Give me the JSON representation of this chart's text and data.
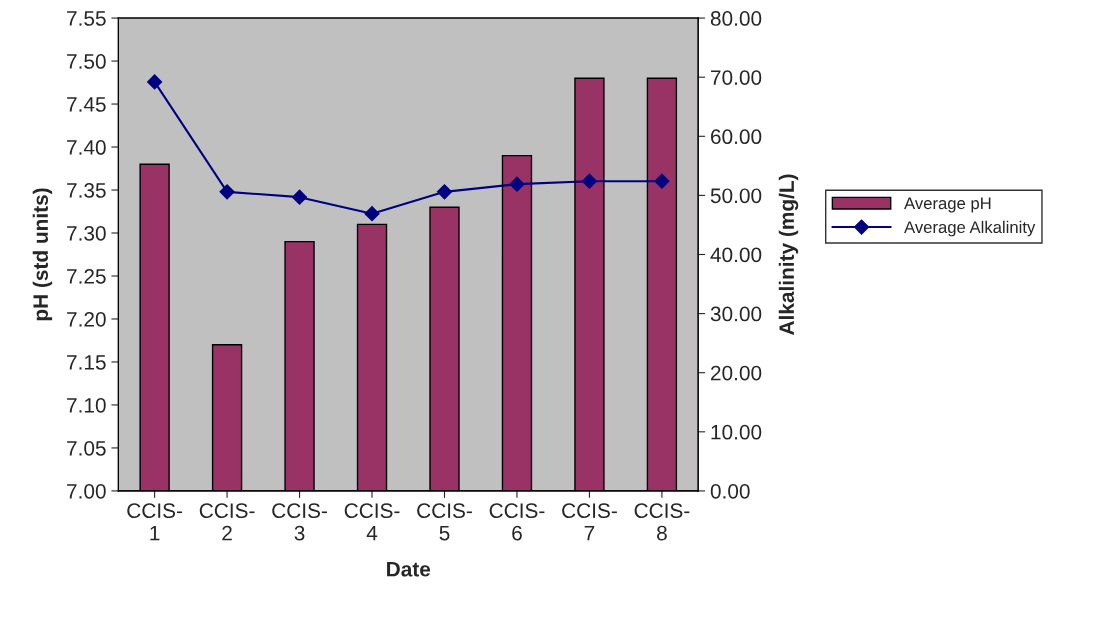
{
  "chart_data": {
    "type": "bar",
    "xlabel": "Date",
    "ylabel": "pH (std units)",
    "y2label": "Alkalinity (mg/L)",
    "categories": [
      "CCIS-1",
      "CCIS-2",
      "CCIS-3",
      "CCIS-4",
      "CCIS-5",
      "CCIS-6",
      "CCIS-7",
      "CCIS-8"
    ],
    "series": [
      {
        "name": "Average pH",
        "color": "#993366",
        "values": [
          7.38,
          7.17,
          7.29,
          7.31,
          7.33,
          7.39,
          7.48,
          7.48
        ]
      },
      {
        "name": "Average Alkalinity",
        "type": "line",
        "axis": "y2",
        "color": "#000080",
        "marker": "diamond",
        "values": [
          69.2,
          50.6,
          49.7,
          46.9,
          50.6,
          51.9,
          52.4,
          52.4
        ]
      }
    ],
    "ylim": [
      7.0,
      7.55
    ],
    "yticks": [
      {
        "value": 7.0,
        "label": "7.00"
      },
      {
        "value": 7.05,
        "label": "7.05"
      },
      {
        "value": 7.1,
        "label": "7.10"
      },
      {
        "value": 7.15,
        "label": "7.15"
      },
      {
        "value": 7.2,
        "label": "7.20"
      },
      {
        "value": 7.25,
        "label": "7.25"
      },
      {
        "value": 7.3,
        "label": "7.30"
      },
      {
        "value": 7.35,
        "label": "7.35"
      },
      {
        "value": 7.4,
        "label": "7.40"
      },
      {
        "value": 7.45,
        "label": "7.45"
      },
      {
        "value": 7.5,
        "label": "7.50"
      },
      {
        "value": 7.55,
        "label": "7.55"
      }
    ],
    "y2lim": [
      0,
      80
    ],
    "y2ticks": [
      {
        "value": 0,
        "label": "0.00"
      },
      {
        "value": 10,
        "label": "10.00"
      },
      {
        "value": 20,
        "label": "20.00"
      },
      {
        "value": 30,
        "label": "30.00"
      },
      {
        "value": 40,
        "label": "40.00"
      },
      {
        "value": 50,
        "label": "50.00"
      },
      {
        "value": 60,
        "label": "60.00"
      },
      {
        "value": 70,
        "label": "70.00"
      },
      {
        "value": 80,
        "label": "80.00"
      }
    ],
    "grid": false,
    "legend": "right"
  }
}
